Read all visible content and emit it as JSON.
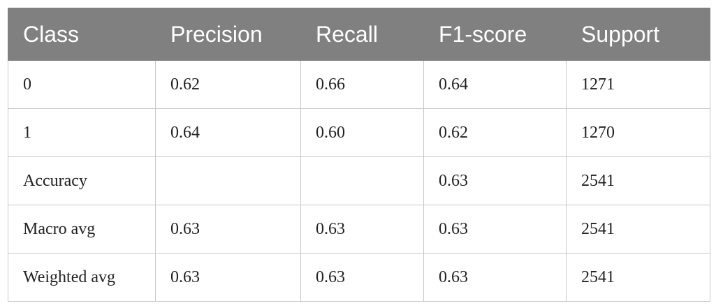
{
  "table": {
    "header": [
      "Class",
      "Precision",
      "Recall",
      "F1-score",
      "Support"
    ],
    "rows": [
      [
        "0",
        "0.62",
        "0.66",
        "0.64",
        "1271"
      ],
      [
        "1",
        "0.64",
        "0.60",
        "0.62",
        "1270"
      ],
      [
        "Accuracy",
        null,
        null,
        "0.63",
        "2541"
      ],
      [
        "Macro avg",
        "0.63",
        "0.63",
        "0.63",
        "2541"
      ],
      [
        "Weighted avg",
        "0.63",
        "0.63",
        "0.63",
        "2541"
      ]
    ]
  }
}
